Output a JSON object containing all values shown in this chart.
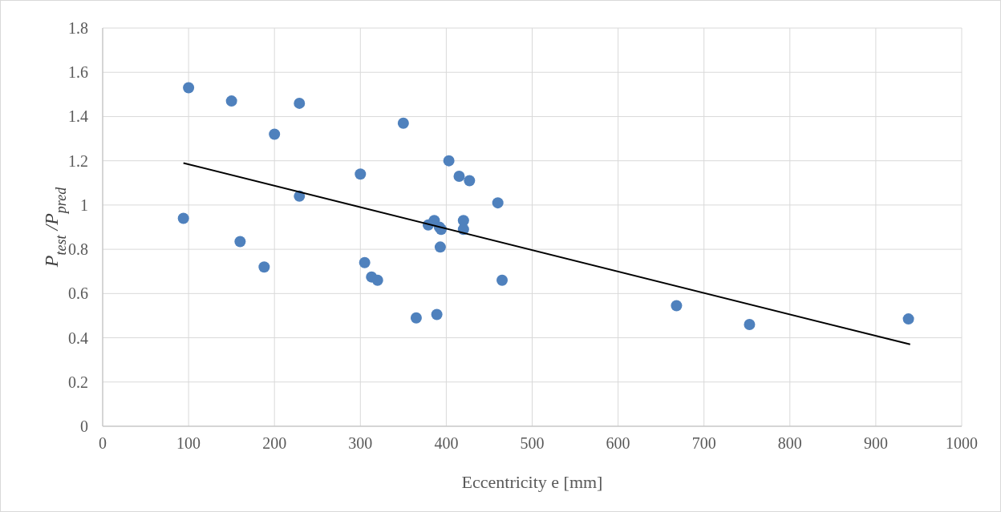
{
  "chart_data": {
    "type": "scatter",
    "xlabel": "Eccentricity e [mm]",
    "ylabel": "P$_{test}$ /P$_{pred}$",
    "xlim": [
      0,
      1000
    ],
    "xticks": [
      0,
      100,
      200,
      300,
      400,
      500,
      600,
      700,
      800,
      900,
      1000
    ],
    "ylim": [
      0,
      1.8
    ],
    "yticks": [
      0,
      0.2,
      0.4,
      0.6,
      0.8,
      1,
      1.2,
      1.4,
      1.6,
      1.8
    ],
    "grid": true,
    "series": [
      {
        "color": "#4f81bd",
        "marker": "circle",
        "x": [
          100,
          150,
          229,
          200,
          350,
          300,
          403,
          415,
          427,
          460,
          229,
          94,
          386,
          379,
          392,
          394,
          420,
          420,
          393,
          160,
          188,
          305,
          313,
          320,
          465,
          365,
          389,
          668,
          753,
          938
        ],
        "values": [
          1.53,
          1.47,
          1.46,
          1.32,
          1.37,
          1.14,
          1.2,
          1.13,
          1.11,
          1.01,
          1.04,
          0.94,
          0.93,
          0.91,
          0.9,
          0.89,
          0.93,
          0.89,
          0.81,
          0.835,
          0.72,
          0.74,
          0.675,
          0.66,
          0.66,
          0.49,
          0.505,
          0.545,
          0.46,
          0.485
        ]
      },
      {
        "type": "line",
        "marker": "none",
        "color": "#000000",
        "x": [
          94,
          940
        ],
        "values": [
          1.19,
          0.37
        ]
      }
    ]
  }
}
